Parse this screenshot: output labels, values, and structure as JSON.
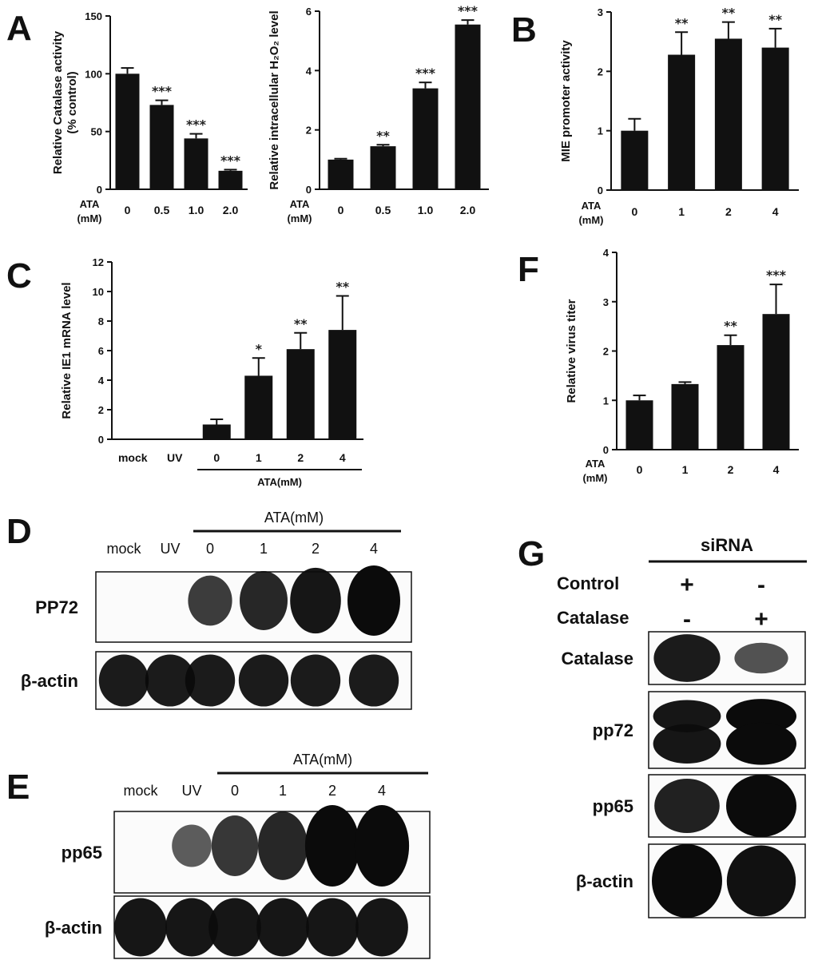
{
  "panel_labels": {
    "A": "A",
    "B": "B",
    "C": "C",
    "D": "D",
    "E": "E",
    "F": "F",
    "G": "G"
  },
  "chart_data": [
    {
      "id": "A1",
      "type": "bar",
      "ylabel_lines": [
        "Relative Catalase activity",
        "(% control)"
      ],
      "xprefix": [
        "ATA",
        "(mM)"
      ],
      "categories": [
        "0",
        "0.5",
        "1.0",
        "2.0"
      ],
      "values": [
        100,
        73,
        44,
        16
      ],
      "errors": [
        5,
        4,
        4,
        1
      ],
      "annotations": [
        "",
        "***",
        "***",
        "***"
      ],
      "ylim": [
        0,
        150
      ],
      "yticks": [
        "0",
        "50",
        "100",
        "150"
      ],
      "ytick_values": [
        0,
        50,
        100,
        150
      ]
    },
    {
      "id": "A2",
      "type": "bar",
      "ylabel_lines": [
        "Relative intracellular H₂O₂ level"
      ],
      "xprefix": [
        "ATA",
        "(mM)"
      ],
      "categories": [
        "0",
        "0.5",
        "1.0",
        "2.0"
      ],
      "values": [
        1.0,
        1.45,
        3.4,
        5.55
      ],
      "errors": [
        0.03,
        0.05,
        0.2,
        0.15
      ],
      "annotations": [
        "",
        "**",
        "***",
        "***"
      ],
      "ylim": [
        0,
        6
      ],
      "yticks": [
        "0",
        "2",
        "4",
        "6"
      ],
      "ytick_values": [
        0,
        2,
        4,
        6
      ]
    },
    {
      "id": "B",
      "type": "bar",
      "ylabel_lines": [
        "MIE promoter activity"
      ],
      "xprefix": [
        "ATA",
        "(mM)"
      ],
      "categories": [
        "0",
        "1",
        "2",
        "4"
      ],
      "values": [
        1.0,
        2.28,
        2.55,
        2.4
      ],
      "errors": [
        0.2,
        0.38,
        0.28,
        0.32
      ],
      "annotations": [
        "",
        "**",
        "**",
        "**"
      ],
      "ylim": [
        0,
        3
      ],
      "yticks": [
        "0",
        "1",
        "2",
        "3"
      ],
      "ytick_values": [
        0,
        1,
        2,
        3
      ]
    },
    {
      "id": "C",
      "type": "bar",
      "ylabel_lines": [
        "Relative IE1 mRNA level"
      ],
      "xprefix": [],
      "categories": [
        "mock",
        "UV",
        "0",
        "1",
        "2",
        "4"
      ],
      "values": [
        0,
        0,
        1.0,
        4.3,
        6.1,
        7.4
      ],
      "errors": [
        0,
        0,
        0.35,
        1.2,
        1.1,
        2.3
      ],
      "annotations": [
        "",
        "",
        "",
        "*",
        "**",
        "**"
      ],
      "group_label": "ATA(mM)",
      "ylim": [
        0,
        12
      ],
      "yticks": [
        "0",
        "2",
        "4",
        "6",
        "8",
        "10",
        "12"
      ],
      "ytick_values": [
        0,
        2,
        4,
        6,
        8,
        10,
        12
      ]
    },
    {
      "id": "F",
      "type": "bar",
      "ylabel_lines": [
        "Relative virus titer"
      ],
      "xprefix": [
        "ATA",
        "(mM)"
      ],
      "categories": [
        "0",
        "1",
        "2",
        "4"
      ],
      "values": [
        1.0,
        1.33,
        2.12,
        2.75
      ],
      "errors": [
        0.1,
        0.04,
        0.2,
        0.6
      ],
      "annotations": [
        "",
        "",
        "**",
        "***"
      ],
      "ylim": [
        0,
        4
      ],
      "yticks": [
        "0",
        "1",
        "2",
        "3",
        "4"
      ],
      "ytick_values": [
        0,
        1,
        2,
        3,
        4
      ]
    }
  ],
  "blots": {
    "D": {
      "group_label": "ATA(mM)",
      "lanes": [
        "mock",
        "UV",
        "0",
        "1",
        "2",
        "4"
      ],
      "rows": [
        {
          "label": "PP72",
          "intensity": [
            0,
            0,
            0.55,
            0.75,
            0.9,
            1.0
          ]
        },
        {
          "label": "β-actin",
          "intensity": [
            0.85,
            0.85,
            0.85,
            0.85,
            0.85,
            0.85
          ]
        }
      ]
    },
    "E": {
      "group_label": "ATA(mM)",
      "lanes": [
        "mock",
        "UV",
        "0",
        "1",
        "2",
        "4"
      ],
      "rows": [
        {
          "label": "pp65",
          "intensity": [
            0,
            0.25,
            0.6,
            0.75,
            1.0,
            1.0
          ]
        },
        {
          "label": "β-actin",
          "intensity": [
            0.9,
            0.9,
            0.9,
            0.9,
            0.9,
            0.9
          ]
        }
      ]
    },
    "G": {
      "group_label": "siRNA",
      "conditions": [
        {
          "label": "Control",
          "values": [
            "+",
            "-"
          ]
        },
        {
          "label": "Catalase",
          "values": [
            "-",
            "+"
          ]
        }
      ],
      "rows": [
        {
          "label": "Catalase",
          "intensity": [
            0.85,
            0.35
          ]
        },
        {
          "label": "pp72",
          "intensity": [
            0.9,
            1.0
          ]
        },
        {
          "label": "pp65",
          "intensity": [
            0.8,
            1.0
          ]
        },
        {
          "label": "β-actin",
          "intensity": [
            1.0,
            0.95
          ]
        }
      ]
    }
  }
}
